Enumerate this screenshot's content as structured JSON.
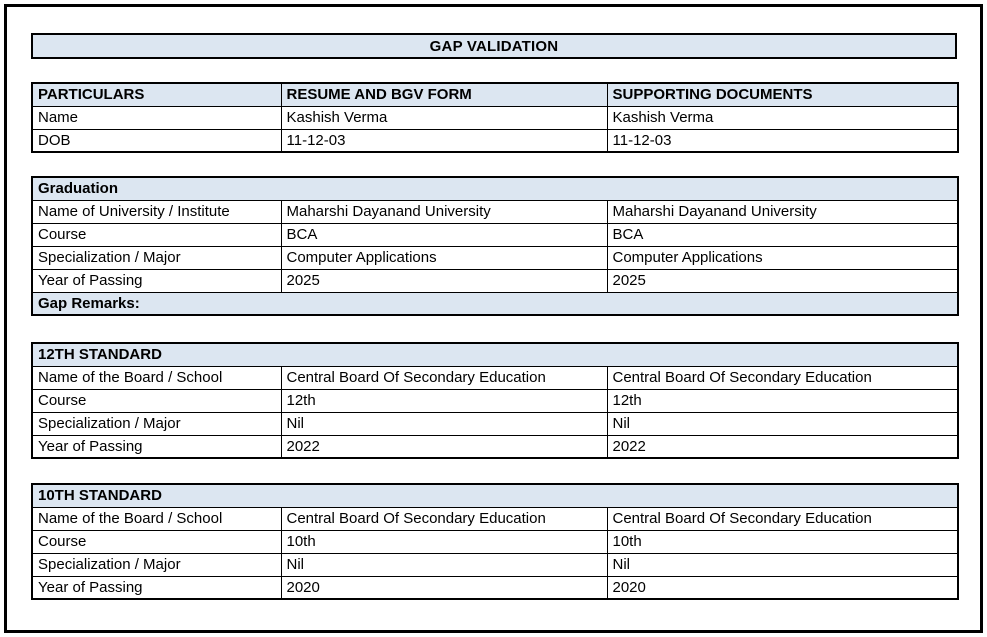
{
  "page": {
    "title": "GAP VALIDATION"
  },
  "colors": {
    "header_fill": "#dce6f1",
    "value_fill": "#ffffff",
    "border": "#000000",
    "text": "#000000"
  },
  "tables": [
    {
      "name": "particulars",
      "header": [
        "PARTICULARS",
        "RESUME AND BGV FORM",
        "SUPPORTING DOCUMENTS"
      ],
      "rows": [
        {
          "label": "Name",
          "resume": "Kashish Verma",
          "supporting": "Kashish Verma"
        },
        {
          "label": "DOB",
          "resume": "11-12-03",
          "supporting": "11-12-03"
        }
      ]
    },
    {
      "name": "graduation",
      "section_title": "Graduation",
      "rows": [
        {
          "label": "Name of University / Institute",
          "resume": "Maharshi Dayanand University",
          "supporting": "Maharshi Dayanand University"
        },
        {
          "label": "Course",
          "resume": "BCA",
          "supporting": "BCA"
        },
        {
          "label": "Specialization / Major",
          "resume": "Computer Applications",
          "supporting": "Computer Applications"
        },
        {
          "label": "Year of Passing",
          "resume": "2025",
          "supporting": "2025"
        }
      ],
      "remarks_label": "Gap Remarks:"
    },
    {
      "name": "12th-standard",
      "section_title": "12TH STANDARD",
      "rows": [
        {
          "label": "Name of the Board / School",
          "resume": "Central Board Of Secondary Education",
          "supporting": "Central Board Of Secondary Education"
        },
        {
          "label": "Course",
          "resume": "12th",
          "supporting": "12th"
        },
        {
          "label": "Specialization / Major",
          "resume": "Nil",
          "supporting": "Nil"
        },
        {
          "label": "Year of Passing",
          "resume": "2022",
          "supporting": "2022"
        }
      ]
    },
    {
      "name": "10th-standard",
      "section_title": "10TH STANDARD",
      "rows": [
        {
          "label": "Name of the Board / School",
          "resume": "Central Board Of Secondary Education",
          "supporting": "Central Board Of Secondary Education"
        },
        {
          "label": "Course",
          "resume": "10th",
          "supporting": "10th"
        },
        {
          "label": "Specialization / Major",
          "resume": "Nil",
          "supporting": "Nil"
        },
        {
          "label": "Year of Passing",
          "resume": "2020",
          "supporting": "2020"
        }
      ]
    }
  ]
}
